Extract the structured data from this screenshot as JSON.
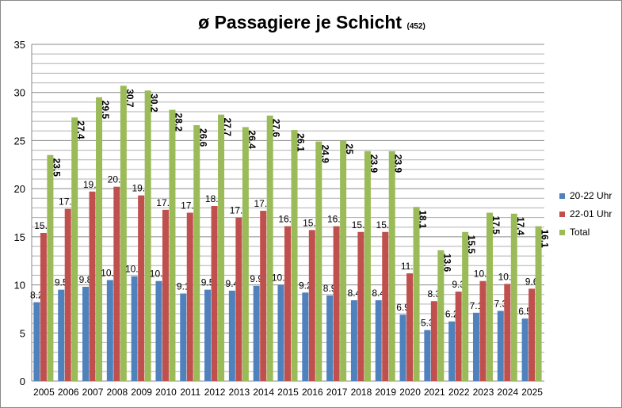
{
  "chart_data": {
    "type": "bar",
    "title": "ø Passagiere je Schicht",
    "subtitle": "(452)",
    "categories": [
      "2005",
      "2006",
      "2007",
      "2008",
      "2009",
      "2010",
      "2011",
      "2012",
      "2013",
      "2014",
      "2015",
      "2016",
      "2017",
      "2018",
      "2019",
      "2020",
      "2021",
      "2022",
      "2023",
      "2024",
      "2025"
    ],
    "series": [
      {
        "name": "20-22 Uhr",
        "color": "#4f81bd",
        "labels": [
          "8.2",
          "9.5",
          "9.8",
          "10.5",
          "10.9",
          "10.4",
          "9.1",
          "9.5",
          "9.4",
          "9.9",
          "10.0",
          "9.2",
          "8.9",
          "8.4",
          "8.4",
          "6.9",
          "5.3",
          "6.2",
          "7.1",
          "7.3",
          "6.5"
        ],
        "values": [
          8.2,
          9.5,
          9.8,
          10.5,
          10.9,
          10.4,
          9.1,
          9.5,
          9.4,
          9.9,
          10.0,
          9.2,
          8.9,
          8.4,
          8.4,
          6.9,
          5.3,
          6.2,
          7.1,
          7.3,
          6.5
        ]
      },
      {
        "name": "22-01 Uhr",
        "color": "#c0504d",
        "labels": [
          "15.4",
          "17.9",
          "19.7",
          "20.2",
          "19.3",
          "17.8",
          "17.5",
          "18.2",
          "17.0",
          "17.7",
          "16.1",
          "15.7",
          "16.1",
          "15.5",
          "15.5",
          "11.2",
          "8.3",
          "9.3",
          "10.4",
          "10.1",
          "9.6"
        ],
        "values": [
          15.4,
          17.9,
          19.7,
          20.2,
          19.3,
          17.8,
          17.5,
          18.2,
          17.0,
          17.7,
          16.1,
          15.7,
          16.1,
          15.5,
          15.5,
          11.2,
          8.3,
          9.3,
          10.4,
          10.1,
          9.6
        ]
      },
      {
        "name": "Total",
        "color": "#9bbb59",
        "labels": [
          "23.5",
          "27.4",
          "29.5",
          "30.7",
          "30.2",
          "28.2",
          "26.6",
          "27.7",
          "26.4",
          "27.6",
          "26.1",
          "24.9",
          "25",
          "23.9",
          "23.9",
          "18.1",
          "13.6",
          "15.5",
          "17.5",
          "17.4",
          "16.1"
        ],
        "values": [
          23.5,
          27.4,
          29.5,
          30.7,
          30.2,
          28.2,
          26.6,
          27.7,
          26.4,
          27.6,
          26.1,
          24.9,
          25,
          23.9,
          23.9,
          18.1,
          13.6,
          15.5,
          17.5,
          17.4,
          16.1
        ]
      }
    ],
    "ylim": [
      0,
      35
    ],
    "yticks": [
      "0",
      "5",
      "10",
      "15",
      "20",
      "25",
      "30",
      "35"
    ],
    "grid": true,
    "legend": "right"
  }
}
